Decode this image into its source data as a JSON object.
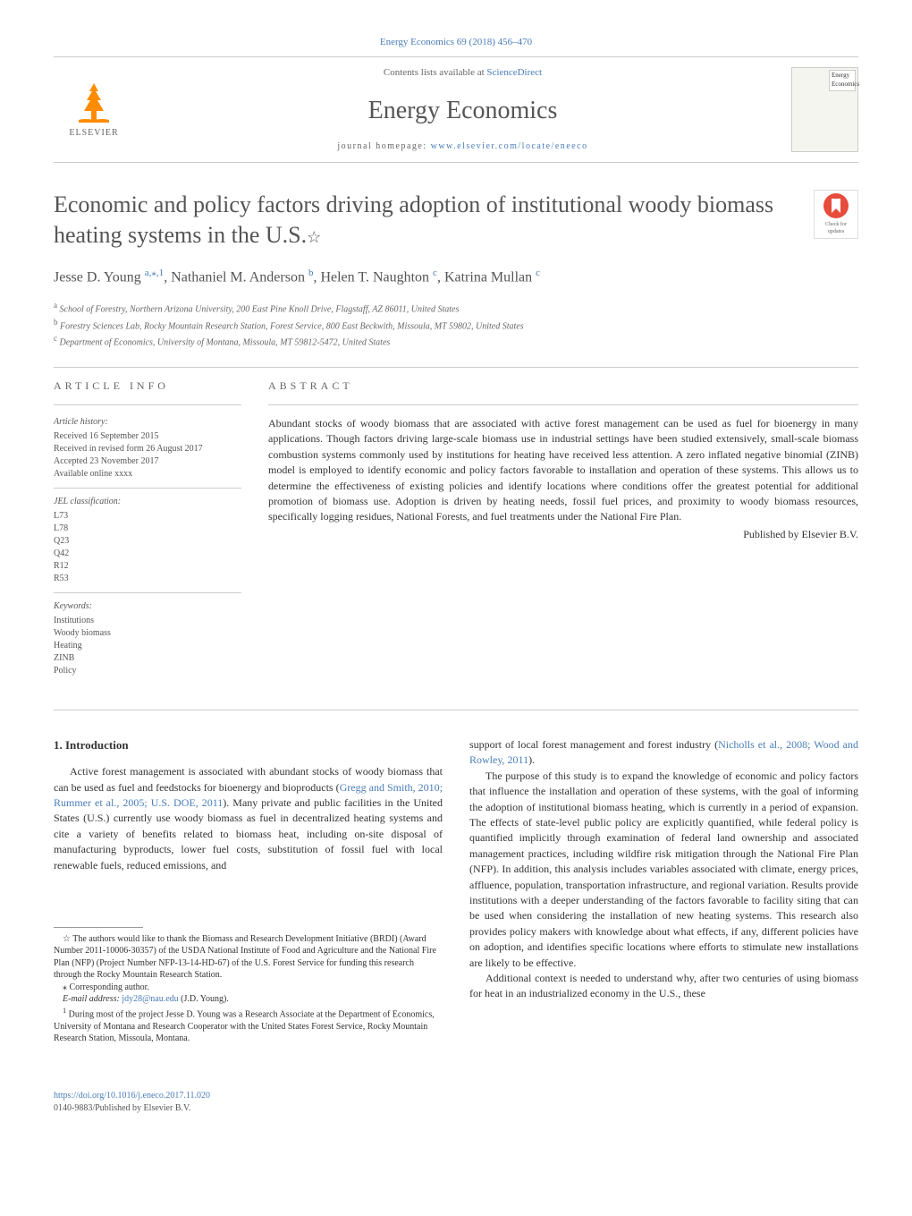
{
  "header": {
    "citation": "Energy Economics 69 (2018) 456–470",
    "contents_prefix": "Contents lists available at ",
    "contents_link": "ScienceDirect",
    "journal_name": "Energy Economics",
    "homepage_prefix": "journal homepage: ",
    "homepage_link": "www.elsevier.com/locate/eneeco",
    "publisher": "ELSEVIER",
    "cover_title_line1": "Energy",
    "cover_title_line2": "Economics"
  },
  "check_badge": {
    "line1": "Check for",
    "line2": "updates"
  },
  "article": {
    "title": "Economic and policy factors driving adoption of institutional woody biomass heating systems in the U.S.",
    "title_star": "☆",
    "authors_html": "Jesse D. Young",
    "author1": "Jesse D. Young ",
    "author1_sup": "a,⁎,1",
    "author2": ", Nathaniel M. Anderson ",
    "author2_sup": "b",
    "author3": ", Helen T. Naughton ",
    "author3_sup": "c",
    "author4": ", Katrina Mullan ",
    "author4_sup": "c"
  },
  "affiliations": {
    "a_sup": "a",
    "a": " School of Forestry, Northern Arizona University, 200 East Pine Knoll Drive, Flagstaff, AZ 86011, United States",
    "b_sup": "b",
    "b": " Forestry Sciences Lab, Rocky Mountain Research Station, Forest Service, 800 East Beckwith, Missoula, MT 59802, United States",
    "c_sup": "c",
    "c": " Department of Economics, University of Montana, Missoula, MT 59812-5472, United States"
  },
  "article_info": {
    "heading": "ARTICLE INFO",
    "history_label": "Article history:",
    "received": "Received 16 September 2015",
    "revised": "Received in revised form 26 August 2017",
    "accepted": "Accepted 23 November 2017",
    "available": "Available online xxxx",
    "jel_label": "JEL classification:",
    "jel": [
      "L73",
      "L78",
      "Q23",
      "Q42",
      "R12",
      "R53"
    ],
    "keywords_label": "Keywords:",
    "keywords": [
      "Institutions",
      "Woody biomass",
      "Heating",
      "ZINB",
      "Policy"
    ]
  },
  "abstract": {
    "heading": "ABSTRACT",
    "text": "Abundant stocks of woody biomass that are associated with active forest management can be used as fuel for bioenergy in many applications. Though factors driving large-scale biomass use in industrial settings have been studied extensively, small-scale biomass combustion systems commonly used by institutions for heating have received less attention. A zero inflated negative binomial (ZINB) model is employed to identify economic and policy factors favorable to installation and operation of these systems. This allows us to determine the effectiveness of existing policies and identify locations where conditions offer the greatest potential for additional promotion of biomass use. Adoption is driven by heating needs, fossil fuel prices, and proximity to woody biomass resources, specifically logging residues, National Forests, and fuel treatments under the National Fire Plan.",
    "publisher_line": "Published by Elsevier B.V."
  },
  "body": {
    "intro_heading": "1. Introduction",
    "col1_p1a": "Active forest management is associated with abundant stocks of woody biomass that can be used as fuel and feedstocks for bioenergy and bioproducts (",
    "col1_p1_link": "Gregg and Smith, 2010; Rummer et al., 2005; U.S. DOE, 2011",
    "col1_p1b": "). Many private and public facilities in the United States (U.S.) currently use woody biomass as fuel in decentralized heating systems and cite a variety of benefits related to biomass heat, including on-site disposal of manufacturing byproducts, lower fuel costs, substitution of fossil fuel with local renewable fuels, reduced emissions, and",
    "col2_p0a": "support of local forest management and forest industry (",
    "col2_p0_link": "Nicholls et al., 2008; Wood and Rowley, 2011",
    "col2_p0b": ").",
    "col2_p1": "The purpose of this study is to expand the knowledge of economic and policy factors that influence the installation and operation of these systems, with the goal of informing the adoption of institutional biomass heating, which is currently in a period of expansion. The effects of state-level public policy are explicitly quantified, while federal policy is quantified implicitly through examination of federal land ownership and associated management practices, including wildfire risk mitigation through the National Fire Plan (NFP). In addition, this analysis includes variables associated with climate, energy prices, affluence, population, transportation infrastructure, and regional variation. Results provide institutions with a deeper understanding of the factors favorable to facility siting that can be used when considering the installation of new heating systems. This research also provides policy makers with knowledge about what effects, if any, different policies have on adoption, and identifies specific locations where efforts to stimulate new installations are likely to be effective.",
    "col2_p2": "Additional context is needed to understand why, after two centuries of using biomass for heat in an industrialized economy in the U.S., these"
  },
  "footnotes": {
    "star": "☆ The authors would like to thank the Biomass and Research Development Initiative (BRDI) (Award Number 2011-10006-30357) of the USDA National Institute of Food and Agriculture and the National Fire Plan (NFP) (Project Number NFP-13-14-HD-67) of the U.S. Forest Service for funding this research through the Rocky Mountain Research Station.",
    "corr_sym": "⁎",
    "corr": " Corresponding author.",
    "email_label": "E-mail address: ",
    "email": "jdy28@nau.edu",
    "email_suffix": " (J.D. Young).",
    "note1_sym": "1",
    "note1": " During most of the project Jesse D. Young was a Research Associate at the Department of Economics, University of Montana and Research Cooperator with the United States Forest Service, Rocky Mountain Research Station, Missoula, Montana."
  },
  "footer": {
    "doi": "https://doi.org/10.1016/j.eneco.2017.11.020",
    "issn": "0140-9883/Published by Elsevier B.V."
  },
  "colors": {
    "link": "#4a7db8",
    "text": "#333333",
    "muted": "#666666",
    "logo": "#ff8c00",
    "badge": "#e74c3c",
    "border": "#cccccc"
  },
  "typography": {
    "title_size": 26,
    "journal_size": 28,
    "body_size": 12,
    "small_size": 10,
    "author_size": 16
  }
}
